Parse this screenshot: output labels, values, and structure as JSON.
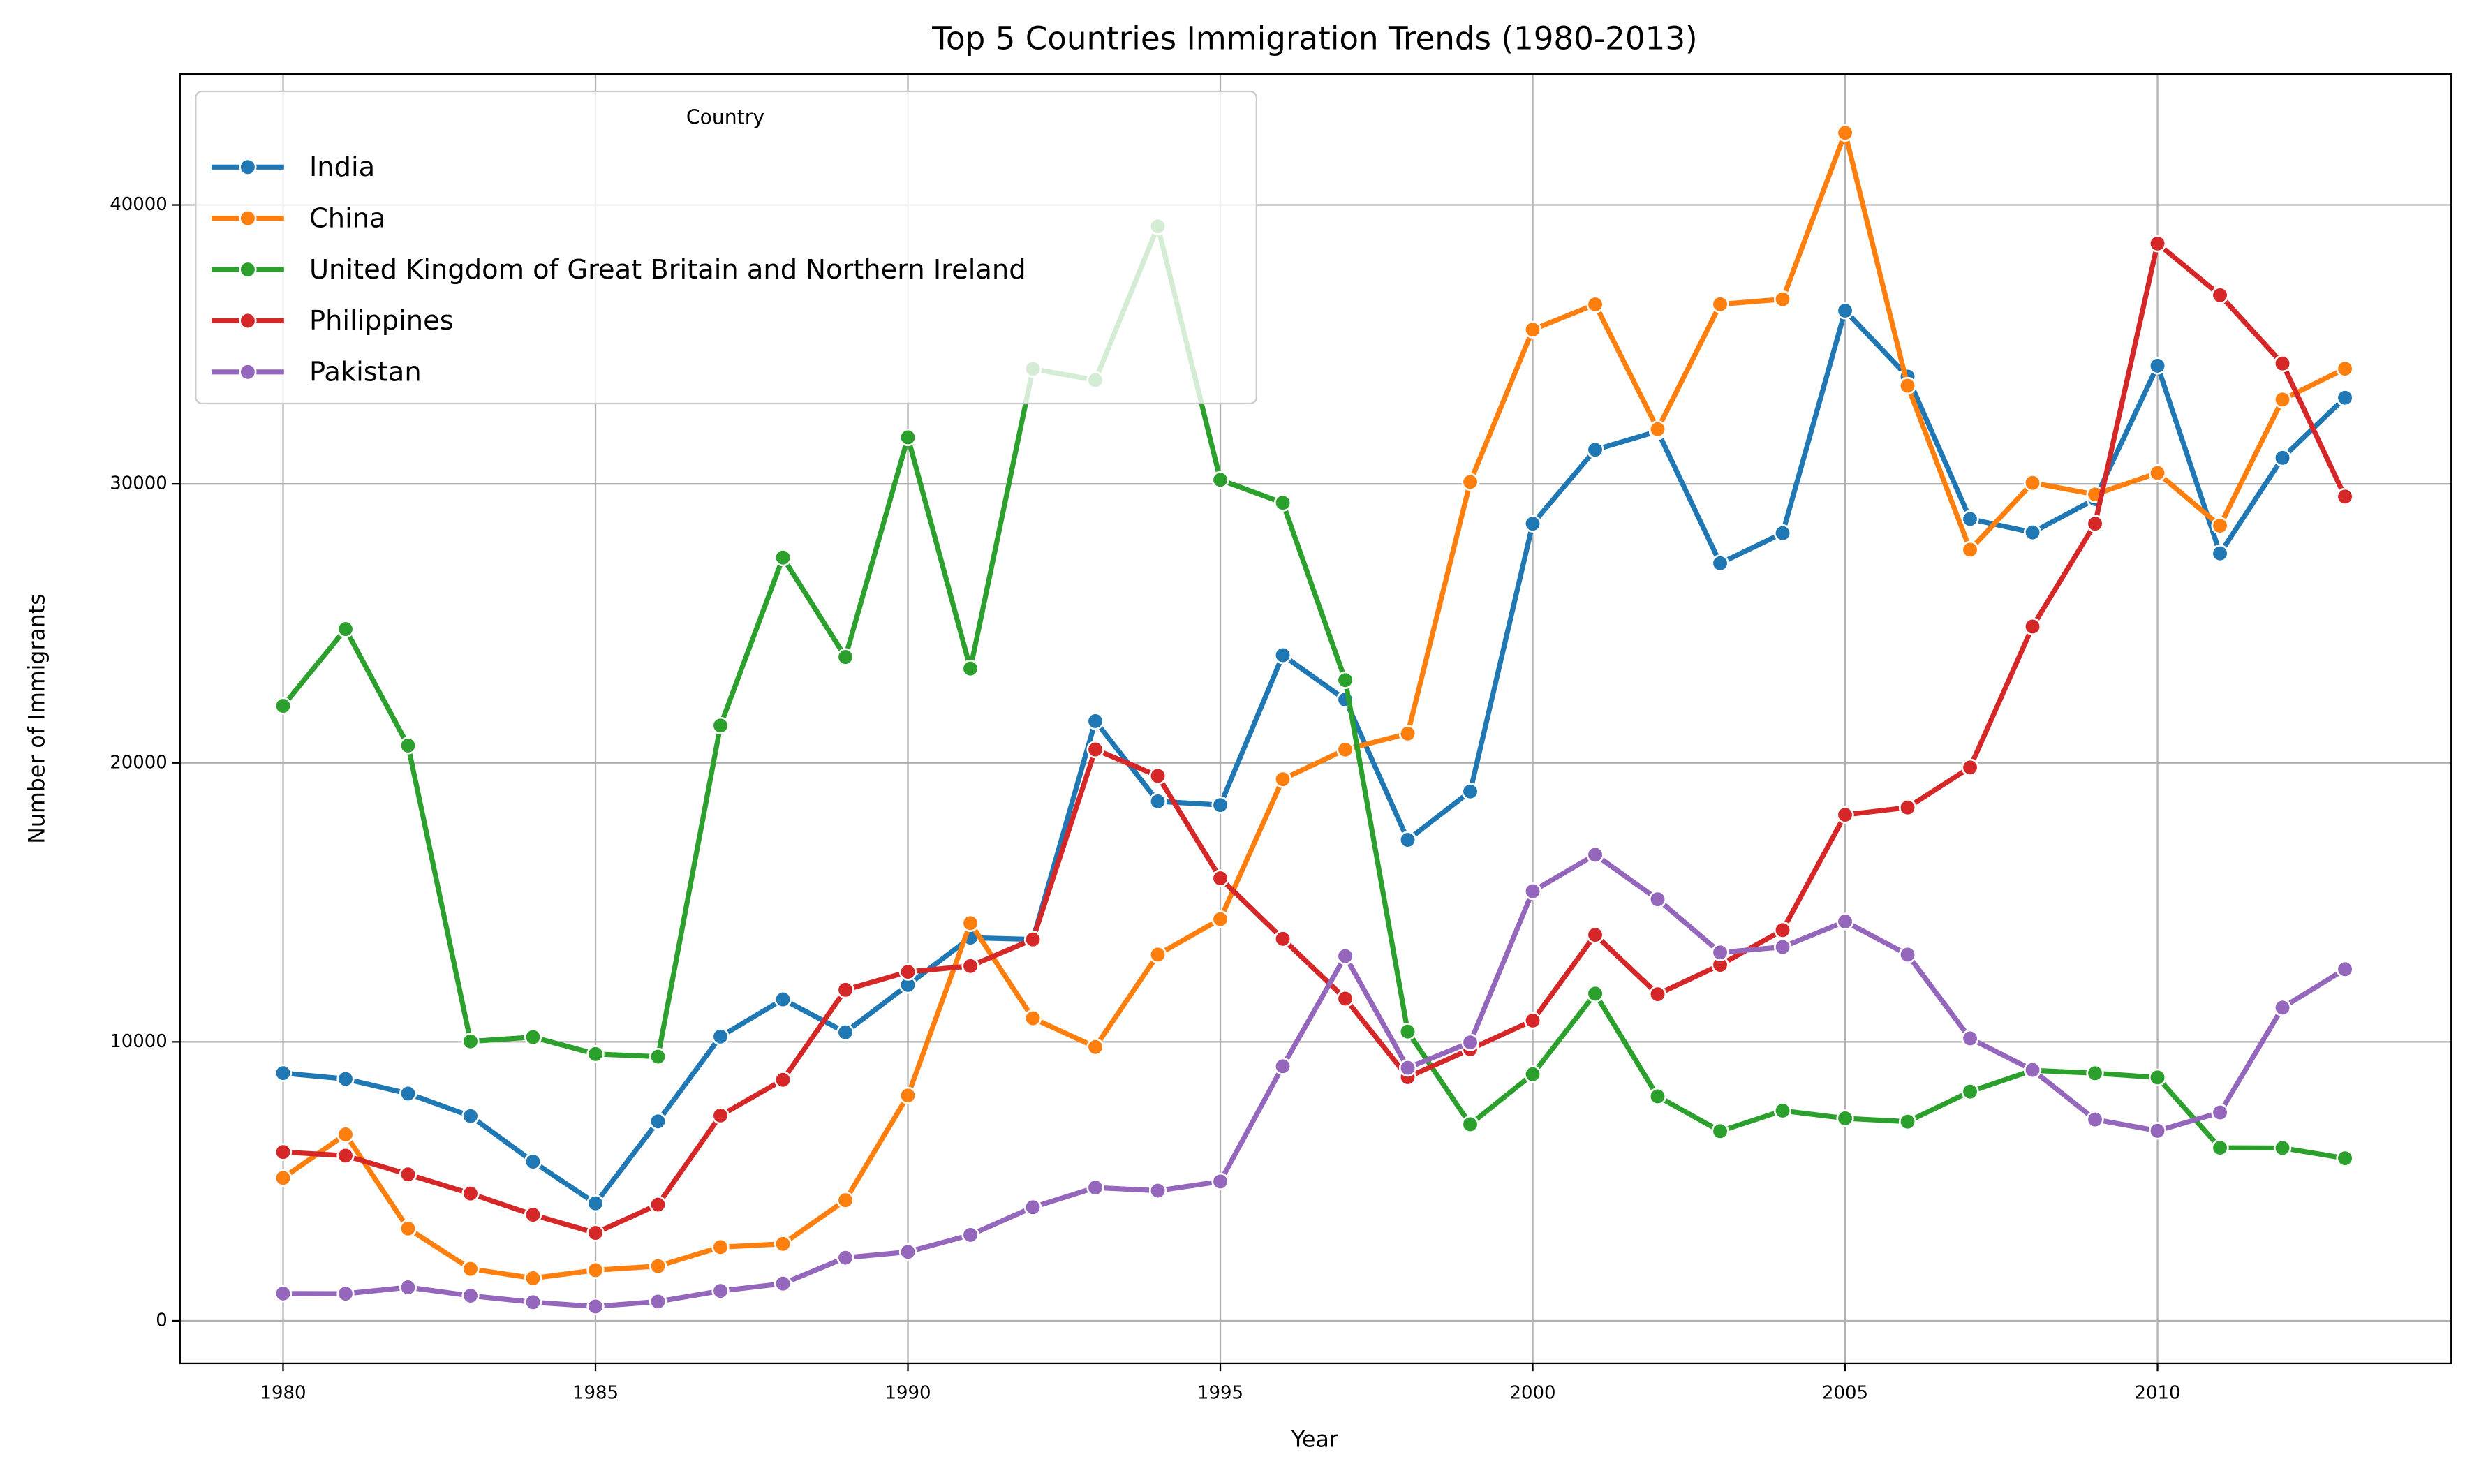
{
  "chart_data": {
    "type": "line",
    "title": "Top 5 Countries Immigration Trends (1980-2013)",
    "x_label": "Year",
    "y_label": "Number of Immigrants",
    "legend_title": "Country",
    "legend_position": "upper left",
    "grid": true,
    "x": [
      1980,
      1981,
      1982,
      1983,
      1984,
      1985,
      1986,
      1987,
      1988,
      1989,
      1990,
      1991,
      1992,
      1993,
      1994,
      1995,
      1996,
      1997,
      1998,
      1999,
      2000,
      2001,
      2002,
      2003,
      2004,
      2005,
      2006,
      2007,
      2008,
      2009,
      2010,
      2011,
      2012,
      2013
    ],
    "xlim": [
      1978.35,
      2014.7
    ],
    "xticks": [
      1980,
      1985,
      1990,
      1995,
      2000,
      2005,
      2010
    ],
    "ylim": [
      -1525,
      44690
    ],
    "yticks": [
      0,
      10000,
      20000,
      30000,
      40000
    ],
    "series": [
      {
        "name": "India",
        "color": "#1f77b4",
        "values": [
          8880,
          8670,
          8147,
          7338,
          5704,
          4211,
          7150,
          10189,
          11522,
          10343,
          12041,
          13734,
          13673,
          21496,
          18620,
          18489,
          23859,
          22268,
          17241,
          18974,
          28572,
          31223,
          31889,
          27155,
          28235,
          36210,
          33848,
          28742,
          28261,
          29456,
          34235,
          27509,
          30933,
          33087
        ]
      },
      {
        "name": "China",
        "color": "#ff7f0e",
        "values": [
          5123,
          6682,
          3308,
          1863,
          1527,
          1816,
          1960,
          2643,
          2758,
          4323,
          8076,
          14255,
          10846,
          9817,
          13128,
          14398,
          19415,
          20475,
          21049,
          30069,
          35529,
          36434,
          31961,
          36439,
          36619,
          42584,
          33518,
          27642,
          30037,
          29622,
          30391,
          28502,
          33024,
          34129
        ]
      },
      {
        "name": "United Kingdom of Great Britain and Northern Ireland",
        "color": "#2ca02c",
        "values": [
          22045,
          24796,
          20620,
          10015,
          10170,
          9564,
          9470,
          21337,
          27359,
          23795,
          31668,
          23380,
          34123,
          33720,
          39231,
          30145,
          29322,
          22965,
          10367,
          7045,
          8840,
          11728,
          8046,
          6797,
          7533,
          7258,
          7140,
          8216,
          8979,
          8876,
          8724,
          6204,
          6195,
          5827
        ]
      },
      {
        "name": "Philippines",
        "color": "#d62728",
        "values": [
          6051,
          5921,
          5249,
          4562,
          3801,
          3150,
          4166,
          7360,
          8639,
          11865,
          12509,
          12718,
          13670,
          20479,
          19532,
          15864,
          13692,
          11549,
          8735,
          9734,
          10763,
          13836,
          11707,
          12758,
          14004,
          18139,
          18400,
          19837,
          24887,
          28573,
          38617,
          36765,
          34315,
          29544
        ]
      },
      {
        "name": "Pakistan",
        "color": "#9467bd",
        "values": [
          978,
          972,
          1201,
          900,
          668,
          514,
          691,
          1072,
          1334,
          2261,
          2470,
          3079,
          4071,
          4777,
          4666,
          4994,
          9125,
          13073,
          9068,
          9979,
          15400,
          16708,
          15110,
          13205,
          13399,
          14314,
          13127,
          10124,
          8994,
          7217,
          6811,
          7468,
          11227,
          12603
        ]
      }
    ]
  }
}
